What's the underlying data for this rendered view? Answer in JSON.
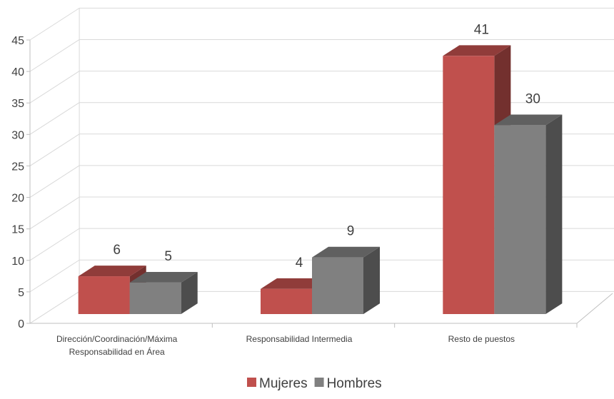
{
  "chart_data": {
    "type": "bar",
    "categories": [
      [
        "Dirección/Coordinación/Máxima",
        "Responsabilidad en Área"
      ],
      [
        "Responsabilidad Intermedia"
      ],
      [
        "Resto de puestos"
      ]
    ],
    "series": [
      {
        "name": "Mujeres",
        "values": [
          6,
          4,
          41
        ],
        "color": "#c0504d"
      },
      {
        "name": "Hombres",
        "values": [
          5,
          9,
          30
        ],
        "color": "#808080"
      }
    ],
    "ylim": [
      0,
      45
    ],
    "yticks": [
      0,
      5,
      10,
      15,
      20,
      25,
      30,
      35,
      40,
      45
    ],
    "grid": true,
    "legend": "bottom",
    "data_labels": true,
    "style": "3d"
  }
}
